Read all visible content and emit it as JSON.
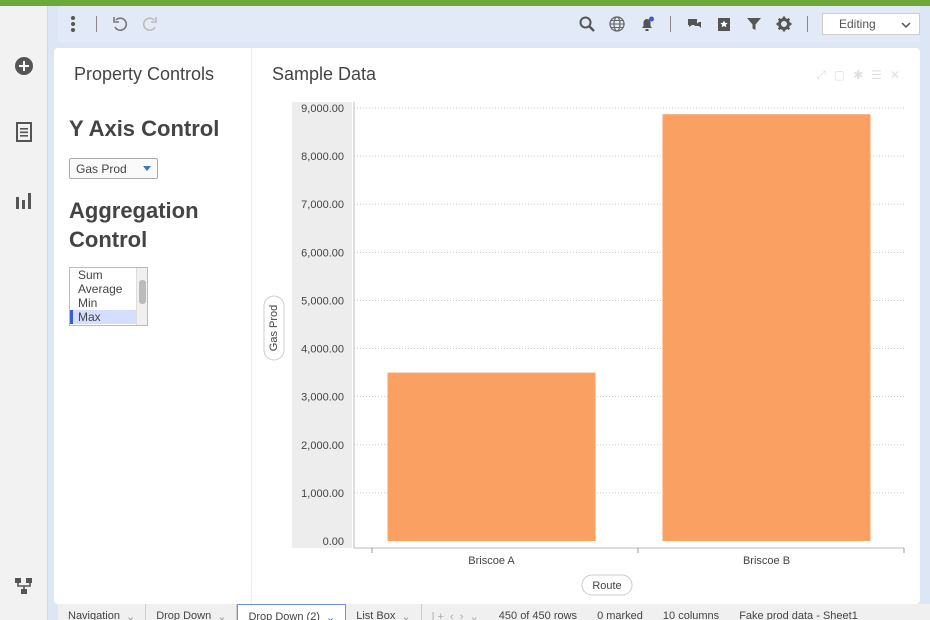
{
  "left_rail": {
    "icons": [
      "plus-circle-icon",
      "document-icon",
      "bar-chart-icon",
      "hierarchy-icon"
    ]
  },
  "toolbar": {
    "mode_label": "Editing"
  },
  "property_panel": {
    "title": "Property Controls",
    "y_axis_heading": "Y Axis Control",
    "y_axis_dropdown_value": "Gas Prod",
    "aggregation_heading": "Aggregation Control",
    "aggregation_options": [
      "Sum",
      "Average",
      "Min",
      "Max"
    ],
    "aggregation_selected": "Max"
  },
  "chart_panel": {
    "title": "Sample Data"
  },
  "chart_data": {
    "type": "bar",
    "categories": [
      "Briscoe A",
      "Briscoe B"
    ],
    "values": [
      3500,
      8870
    ],
    "xlabel": "Route",
    "ylabel": "Gas Prod",
    "ylim": [
      0,
      9000
    ],
    "yticks": [
      "0.00",
      "1,000.00",
      "2,000.00",
      "3,000.00",
      "4,000.00",
      "5,000.00",
      "6,000.00",
      "7,000.00",
      "8,000.00",
      "9,000.00"
    ],
    "bar_color": "#f9a062",
    "grid": "horizontal"
  },
  "status_bar": {
    "tabs": [
      "Navigation",
      "Drop Down",
      "Drop Down (2)",
      "List Box"
    ],
    "active_tab": "Drop Down (2)",
    "rows": "450 of 450 rows",
    "marked": "0 marked",
    "columns": "10 columns",
    "source": "Fake prod data - Sheet1"
  }
}
